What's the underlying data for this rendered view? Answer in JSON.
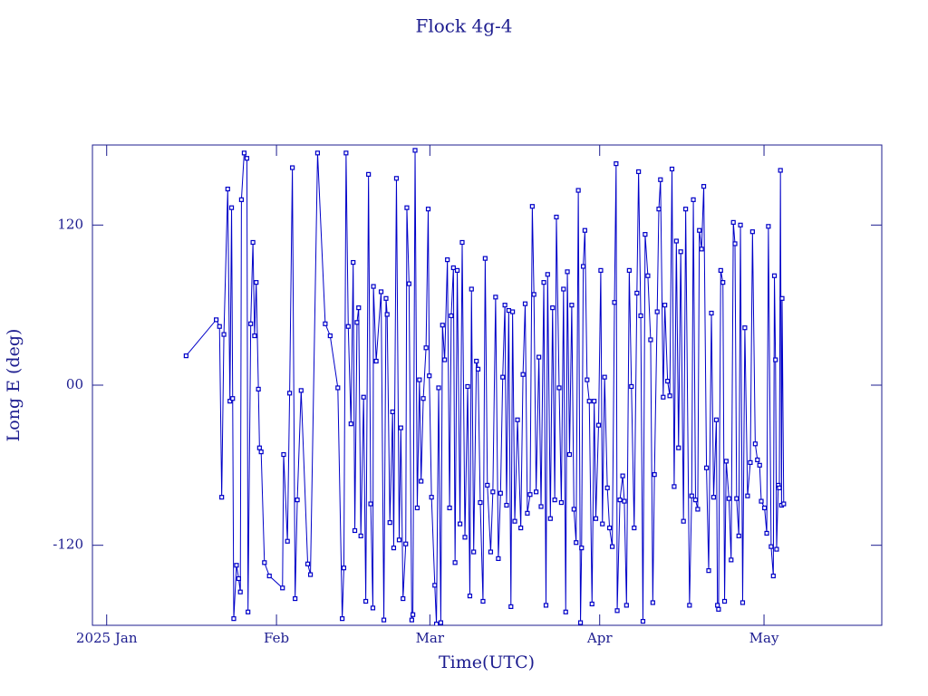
{
  "chart_data": {
    "type": "line",
    "title": "Flock 4g-4",
    "x_label": "Time(UTC)",
    "y_label": "Long E (deg)",
    "color": "#0000c8",
    "xlim": [
      -2.6,
      141.5
    ],
    "xticks": [
      {
        "value": 0,
        "label": "2025 Jan"
      },
      {
        "value": 31,
        "label": "Feb"
      },
      {
        "value": 59,
        "label": "Mar"
      },
      {
        "value": 90,
        "label": "Apr"
      },
      {
        "value": 120,
        "label": "May"
      }
    ],
    "ylim": [
      -180,
      180
    ],
    "yticks": [
      -120,
      {
        "value": 0,
        "label": "00"
      },
      120
    ],
    "x": [
      14.5,
      20,
      20.6,
      21.0,
      21.4,
      22.1,
      22.5,
      22.8,
      23.0,
      23.2,
      23.7,
      24.1,
      24.4,
      24.6,
      25.1,
      25.6,
      25.8,
      26.3,
      26.7,
      27.0,
      27.3,
      27.7,
      27.9,
      28.2,
      28.8,
      29.7,
      32.1,
      32.3,
      33.0,
      33.4,
      33.9,
      34.4,
      34.8,
      35.5,
      36.7,
      37.2,
      38.5,
      39.9,
      40.8,
      42.2,
      43.0,
      43.3,
      43.7,
      44.1,
      44.6,
      45.0,
      45.3,
      45.7,
      46.0,
      46.4,
      46.9,
      47.3,
      47.8,
      48.2,
      48.6,
      48.7,
      49.2,
      50.1,
      50.6,
      51.0,
      51.2,
      51.7,
      52.2,
      52.4,
      52.9,
      53.4,
      53.7,
      54.1,
      54.6,
      54.8,
      55.2,
      55.7,
      55.9,
      56.3,
      56.7,
      57.1,
      57.4,
      57.8,
      58.3,
      58.7,
      58.9,
      59.3,
      59.9,
      60.2,
      60.6,
      61.0,
      61.3,
      61.7,
      62.2,
      62.6,
      62.9,
      63.3,
      63.6,
      64.0,
      64.5,
      64.9,
      65.4,
      65.9,
      66.3,
      66.6,
      67.0,
      67.5,
      67.8,
      68.2,
      68.7,
      69.1,
      69.5,
      70.1,
      70.5,
      71.0,
      71.5,
      71.9,
      72.3,
      72.7,
      73.0,
      73.4,
      73.8,
      74.1,
      74.5,
      75.0,
      75.6,
      76.0,
      76.4,
      76.8,
      77.3,
      77.7,
      78.0,
      78.4,
      78.9,
      79.3,
      79.8,
      80.2,
      80.5,
      81.0,
      81.4,
      81.8,
      82.1,
      82.6,
      83.0,
      83.4,
      83.8,
      84.1,
      84.5,
      84.9,
      85.3,
      85.7,
      86.1,
      86.5,
      86.7,
      87.0,
      87.3,
      87.7,
      88.1,
      88.6,
      89.0,
      89.3,
      89.8,
      90.2,
      90.5,
      90.9,
      91.4,
      91.8,
      92.3,
      92.7,
      93.0,
      93.2,
      93.7,
      94.2,
      94.5,
      94.9,
      95.4,
      95.8,
      96.3,
      96.8,
      97.1,
      97.5,
      97.9,
      98.3,
      98.8,
      99.3,
      99.7,
      100.0,
      100.5,
      100.8,
      101.1,
      101.6,
      101.9,
      102.4,
      102.8,
      103.2,
      103.6,
      104.0,
      104.4,
      104.8,
      105.3,
      105.7,
      106.4,
      106.8,
      107.1,
      107.5,
      107.9,
      108.2,
      108.6,
      109.0,
      109.5,
      109.9,
      110.4,
      110.8,
      111.3,
      111.5,
      111.7,
      112.1,
      112.5,
      112.8,
      113.1,
      113.6,
      114.0,
      114.4,
      114.7,
      115.0,
      115.4,
      115.7,
      116.1,
      116.5,
      117.0,
      117.5,
      117.9,
      118.4,
      118.8,
      119.2,
      119.5,
      120.1,
      120.5,
      120.8,
      121.3,
      121.7,
      121.9,
      122.1,
      122.3,
      122.6,
      122.8,
      123.0,
      123.2,
      123.3,
      123.6
    ],
    "values": [
      22,
      49,
      44,
      -84,
      38,
      147,
      -12,
      133,
      -10,
      -175,
      -135,
      -145,
      -155,
      139,
      174,
      170,
      -170,
      46,
      107,
      37,
      77,
      -3,
      -47,
      -50,
      -133,
      -143,
      -152,
      -52,
      -117,
      -6,
      163,
      -160,
      -86,
      -4,
      -134,
      -142,
      174,
      46,
      37,
      -2,
      -175,
      -137,
      174,
      44,
      -29,
      92,
      -109,
      47,
      58,
      -113,
      -9,
      -162,
      158,
      -89,
      -167,
      74,
      18,
      70,
      -176,
      65,
      53,
      -103,
      -20,
      -122,
      155,
      -116,
      -32,
      -160,
      -119,
      133,
      76,
      -176,
      -172,
      176,
      -92,
      4,
      -72,
      -10,
      28,
      132,
      7,
      -84,
      -150,
      -179,
      -2,
      -178,
      45,
      19,
      94,
      -92,
      52,
      88,
      -133,
      86,
      -104,
      107,
      -114,
      -1,
      -158,
      72,
      -125,
      18,
      12,
      -88,
      -162,
      95,
      -75,
      -125,
      -80,
      66,
      -130,
      -81,
      6,
      60,
      -90,
      56,
      -166,
      55,
      -102,
      -26,
      -107,
      8,
      61,
      -96,
      -82,
      134,
      68,
      -80,
      21,
      -91,
      77,
      -165,
      83,
      -100,
      58,
      -86,
      126,
      -2,
      -88,
      72,
      -170,
      85,
      -52,
      60,
      -93,
      -118,
      146,
      -178,
      -122,
      89,
      116,
      4,
      -12,
      -164,
      -12,
      -100,
      -30,
      86,
      -104,
      6,
      -77,
      -107,
      -121,
      62,
      166,
      -169,
      -86,
      -68,
      -87,
      -165,
      86,
      -1,
      -107,
      69,
      160,
      52,
      -177,
      113,
      82,
      34,
      -163,
      -67,
      55,
      132,
      154,
      -9,
      60,
      3,
      -8,
      162,
      -76,
      108,
      -47,
      100,
      -102,
      132,
      -165,
      -83,
      139,
      -86,
      -93,
      116,
      102,
      149,
      -62,
      -139,
      54,
      -84,
      -26,
      -165,
      -168,
      86,
      77,
      -162,
      -57,
      -85,
      -131,
      122,
      106,
      -85,
      -113,
      120,
      -163,
      43,
      -83,
      -58,
      115,
      -44,
      -56,
      -60,
      -87,
      -92,
      -111,
      119,
      -121,
      -143,
      82,
      19,
      -123,
      -75,
      -77,
      161,
      -90,
      65,
      -89
    ]
  }
}
